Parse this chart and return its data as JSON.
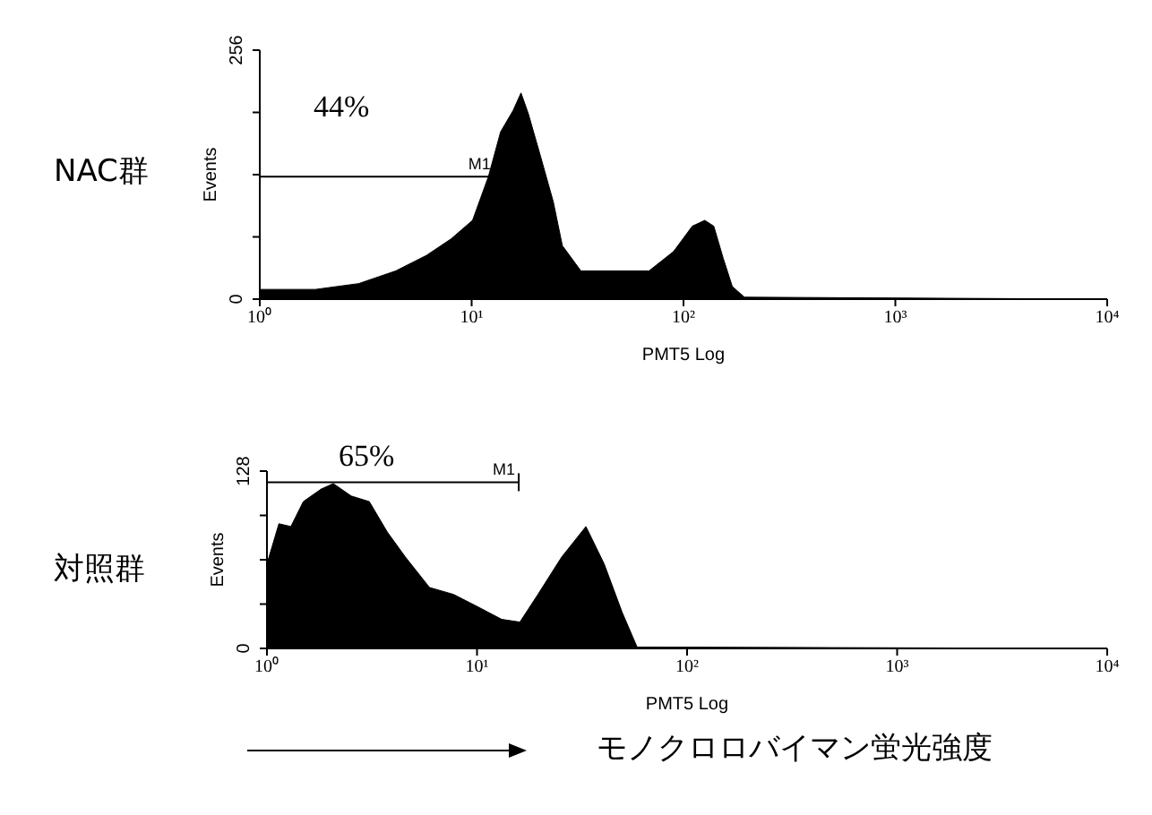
{
  "chart_data": [
    {
      "type": "area",
      "title": "NAC群",
      "xlabel": "PMT5 Log",
      "ylabel": "Events",
      "log": "x",
      "series": [
        {
          "color": "#000000",
          "x": [
            1,
            1.83,
            2.93,
            4.38,
            6.12,
            8.0,
            10.1,
            12,
            13.7,
            15.7,
            17.1,
            18.5,
            21.2,
            24.3,
            26.8,
            32.8,
            45.9,
            68.7,
            89.8,
            110,
            126,
            139,
            154,
            170,
            194,
            10000
          ],
          "values": [
            10,
            10,
            16,
            29,
            45,
            62,
            81,
            126,
            172,
            194,
            212,
            191,
            146,
            100,
            55,
            29,
            29,
            29,
            49,
            75,
            81,
            75,
            42,
            13,
            2,
            0
          ]
        },
        {
          "type": "line",
          "color": "#000000",
          "x": [
            1,
            12.8
          ],
          "values": [
            126,
            126
          ]
        }
      ],
      "xlim": [
        1,
        10000
      ],
      "xticks": [
        {
          "value": 1,
          "label": "10⁰"
        },
        {
          "value": 10,
          "label": "10¹"
        },
        {
          "value": 100,
          "label": "10²"
        },
        {
          "value": 1000,
          "label": "10³"
        },
        {
          "value": 10000,
          "label": "10⁴"
        }
      ],
      "ylim": [
        0,
        256
      ],
      "yticks": [
        0,
        {
          "value": 64,
          "label": null
        },
        {
          "value": 128,
          "label": null
        },
        {
          "value": 192,
          "label": null
        },
        256
      ],
      "annotations": [
        "44%",
        {
          "text": "M1",
          "x": 12.8,
          "y": 126
        }
      ]
    },
    {
      "type": "area",
      "title": "対照群",
      "xlabel": "PMT5 Log",
      "ylabel": "Events",
      "log": "x",
      "series": [
        {
          "color": "#000000",
          "x": [
            1,
            1.14,
            1.3,
            1.49,
            1.81,
            2.07,
            2.52,
            3.07,
            3.74,
            4.56,
            5.94,
            7.73,
            10.1,
            13.1,
            16.0,
            19.5,
            25.3,
            33.0,
            40.3,
            49.1,
            57.8,
            10000
          ],
          "values": [
            61,
            90,
            88,
            106,
            115,
            119,
            110,
            106,
            84,
            66,
            44,
            39,
            30,
            21,
            19,
            39,
            66,
            88,
            61,
            26,
            1,
            0
          ]
        },
        {
          "type": "line",
          "color": "#000000",
          "x": [
            1,
            15.8
          ],
          "values": [
            120,
            120
          ]
        }
      ],
      "xlim": [
        1,
        10000
      ],
      "xticks": [
        {
          "value": 1,
          "label": "10⁰"
        },
        {
          "value": 10,
          "label": "10¹"
        },
        {
          "value": 100,
          "label": "10²"
        },
        {
          "value": 1000,
          "label": "10³"
        },
        {
          "value": 10000,
          "label": "10⁴"
        }
      ],
      "ylim": [
        0,
        128
      ],
      "yticks": [
        0,
        {
          "value": 32,
          "label": null
        },
        {
          "value": 64,
          "label": null
        },
        {
          "value": 96,
          "label": null
        },
        128
      ],
      "annotations": [
        "65%",
        {
          "text": "M1",
          "x": 15.8,
          "y": 120
        },
        "モノクロロバイマン蛍光強度"
      ]
    }
  ]
}
